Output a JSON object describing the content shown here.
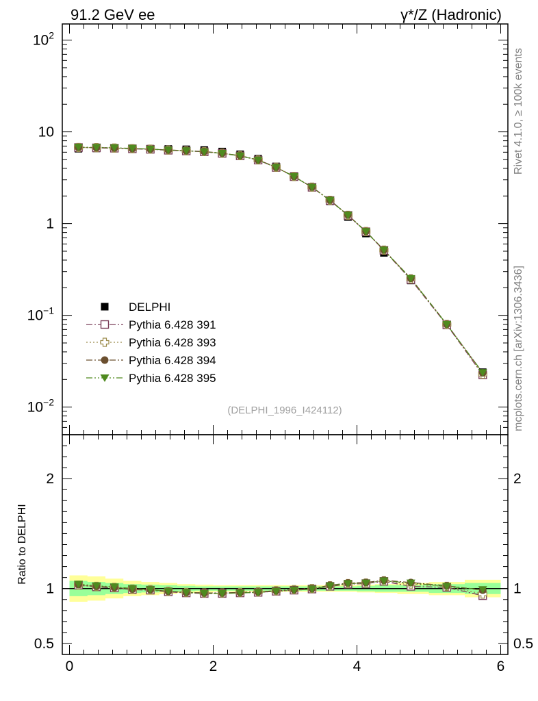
{
  "header": {
    "left_title": "91.2 GeV ee",
    "right_title": "γ*/Z (Hadronic)"
  },
  "side": {
    "rivet": "Rivet 4.1.0, ≥ 100k events",
    "mcplots": "mcplots.cern.ch [arXiv:1306.3436]"
  },
  "chart_data": {
    "type": "scatter",
    "title": "91.2 GeV ee — γ*/Z (Hadronic)",
    "analysis": "(DELPHI_1996_I424112)",
    "xlabel": "",
    "ylabel_main": "",
    "ylabel_ratio": "Ratio to DELPHI",
    "xlim": [
      -0.1,
      6.1
    ],
    "ylim_main": [
      0.005,
      150
    ],
    "yscale_main": "log",
    "ylim_ratio": [
      0.4,
      2.4
    ],
    "x_ticks": [
      "0",
      "2",
      "4",
      "6"
    ],
    "main_ticks": [
      {
        "v": 100,
        "b": "10",
        "e": "2"
      },
      {
        "v": 10,
        "b": "10",
        "e": ""
      },
      {
        "v": 1,
        "b": "1",
        "e": ""
      },
      {
        "v": 0.1,
        "b": "10",
        "e": "−1"
      },
      {
        "v": 0.01,
        "b": "10",
        "e": "−2"
      }
    ],
    "ratio_ticks": [
      "0.5",
      "1",
      "2"
    ],
    "x": [
      0.125,
      0.375,
      0.625,
      0.875,
      1.125,
      1.375,
      1.625,
      1.875,
      2.125,
      2.375,
      2.625,
      2.875,
      3.125,
      3.375,
      3.625,
      3.875,
      4.125,
      4.375,
      4.75,
      5.25,
      5.75
    ],
    "data": {
      "name": "DELPHI",
      "values": [
        6.55,
        6.6,
        6.6,
        6.6,
        6.55,
        6.5,
        6.45,
        6.35,
        6.1,
        5.7,
        5.1,
        4.2,
        3.3,
        2.5,
        1.75,
        1.18,
        0.78,
        0.48,
        0.24,
        0.078,
        0.024
      ],
      "band_inner": [
        0.07,
        0.06,
        0.05,
        0.04,
        0.035,
        0.03,
        0.025,
        0.02,
        0.02,
        0.02,
        0.02,
        0.02,
        0.02,
        0.02,
        0.02,
        0.02,
        0.025,
        0.03,
        0.03,
        0.04,
        0.05
      ],
      "band_outer": [
        0.12,
        0.11,
        0.09,
        0.07,
        0.06,
        0.05,
        0.04,
        0.035,
        0.03,
        0.03,
        0.03,
        0.03,
        0.03,
        0.03,
        0.03,
        0.03,
        0.035,
        0.04,
        0.05,
        0.06,
        0.08
      ]
    },
    "series": [
      {
        "name": "Pythia 6.428 391",
        "color": "#7b3f59",
        "marker": "open-square",
        "dash": "9,3,2,3",
        "ratio": [
          1.03,
          1.015,
          1.005,
          0.99,
          0.985,
          0.97,
          0.96,
          0.955,
          0.955,
          0.96,
          0.965,
          0.975,
          0.985,
          0.995,
          1.02,
          1.04,
          1.045,
          1.065,
          1.02,
          1.01,
          0.935
        ]
      },
      {
        "name": "Pythia 6.428 393",
        "color": "#9b8a4a",
        "marker": "open-cross",
        "dash": "2,3",
        "ratio": [
          1.03,
          1.02,
          1.01,
          0.995,
          0.99,
          0.975,
          0.965,
          0.96,
          0.96,
          0.965,
          0.97,
          0.98,
          0.99,
          1.0,
          1.025,
          1.045,
          1.05,
          1.07,
          1.04,
          1.02,
          0.95
        ]
      },
      {
        "name": "Pythia 6.428 394",
        "color": "#6b4f2f",
        "marker": "filled-circle",
        "dash": "9,3,2,3",
        "ratio": [
          1.035,
          1.02,
          1.01,
          0.995,
          0.99,
          0.975,
          0.965,
          0.96,
          0.96,
          0.965,
          0.97,
          0.98,
          0.99,
          1.0,
          1.03,
          1.05,
          1.055,
          1.075,
          1.055,
          1.025,
          0.985
        ]
      },
      {
        "name": "Pythia 6.428 395",
        "color": "#4f8a1f",
        "marker": "filled-triangle-down",
        "dash": "9,3,2,3,2,3",
        "ratio": [
          1.04,
          1.025,
          1.015,
          1.0,
          0.99,
          0.975,
          0.965,
          0.955,
          0.955,
          0.96,
          0.965,
          0.975,
          0.985,
          0.995,
          1.025,
          1.045,
          1.05,
          1.07,
          1.05,
          1.02,
          0.99
        ]
      }
    ],
    "legend_position": "left-middle"
  },
  "colors": {
    "data": "#000000",
    "band_inner": "#99ff99",
    "band_outer": "#ffff99",
    "unity_line": "#000000",
    "watermark_text": "#808080"
  }
}
